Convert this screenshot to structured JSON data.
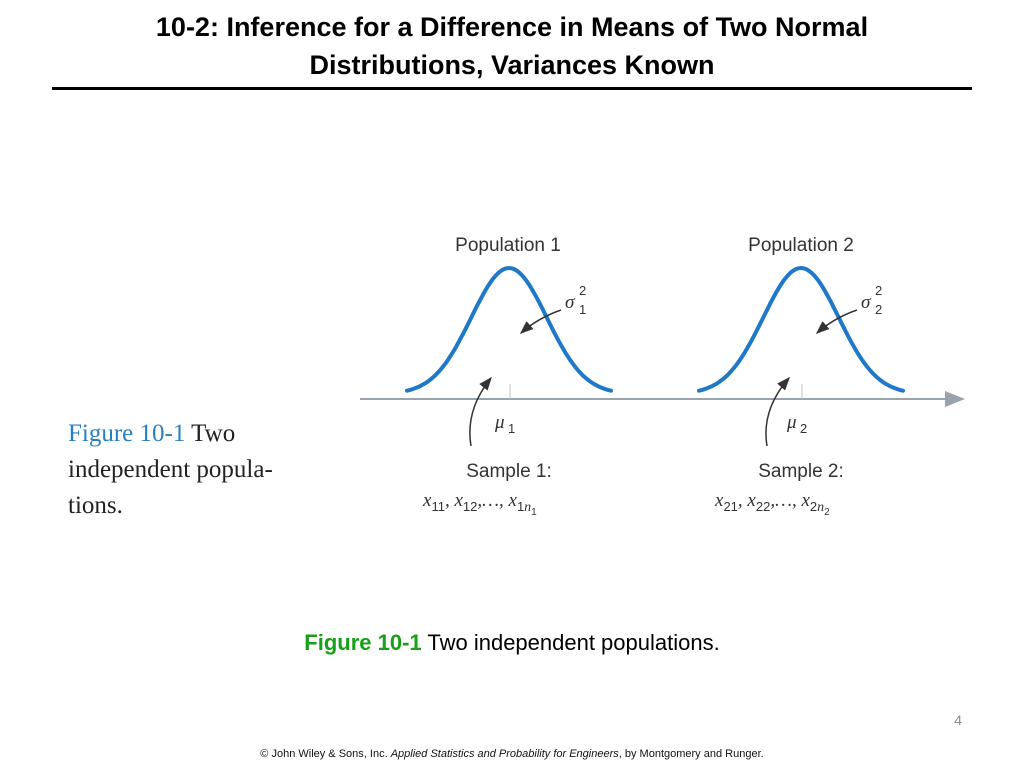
{
  "slide": {
    "title_line1": "10-2:  Inference for a Difference in Means of Two Normal",
    "title_line2": "Distributions, Variances Known",
    "page_number": "4"
  },
  "side_caption": {
    "figure_number": "Figure 10-1",
    "text_line1": " Two",
    "text_line2": "independent popula-",
    "text_line3": "tions."
  },
  "diagram": {
    "population1": {
      "label": "Population 1",
      "variance_symbol": "σ",
      "variance_sup": "2",
      "variance_sub": "1",
      "mean_symbol": "μ",
      "mean_sub": "1",
      "sample_label": "Sample 1:",
      "sample_expr": {
        "x": "x",
        "s1": "11",
        "s2": "12",
        "dots": ",…, ",
        "s3": "1",
        "n": "n",
        "nsub": "1"
      }
    },
    "population2": {
      "label": "Population 2",
      "variance_symbol": "σ",
      "variance_sup": "2",
      "variance_sub": "2",
      "mean_symbol": "μ",
      "mean_sub": "2",
      "sample_label": "Sample 2:",
      "sample_expr": {
        "x": "x",
        "s1": "21",
        "s2": "22",
        "dots": ",…, ",
        "s3": "2",
        "n": "n",
        "nsub": "2"
      }
    },
    "curve_color": "#1f78c8",
    "axis_color": "#9aa3ad"
  },
  "caption": {
    "label": "Figure 10-1",
    "text": " Two independent populations."
  },
  "footer": {
    "prefix": "© John Wiley & Sons, Inc.  ",
    "book": "Applied Statistics and Probability for Engineers",
    "suffix": ", by Montgomery and Runger."
  }
}
